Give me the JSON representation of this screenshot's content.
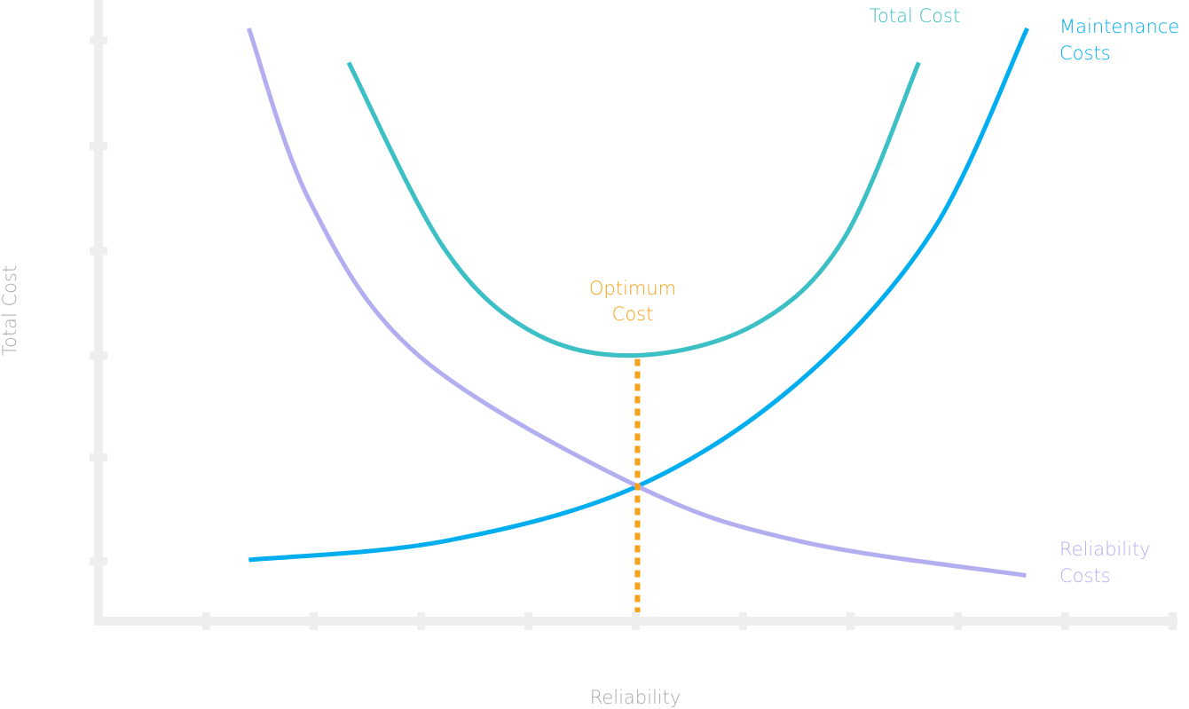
{
  "chart_data": {
    "type": "line",
    "title": "",
    "xlabel": "Reliability",
    "ylabel": "Total Cost",
    "xlim": [
      0,
      10
    ],
    "ylim": [
      0,
      6
    ],
    "x_ticks": [
      1,
      2,
      3,
      4,
      5,
      6,
      7,
      8,
      9,
      10
    ],
    "y_ticks": [
      0.58,
      1.58,
      2.56,
      3.57,
      4.58,
      5.6
    ],
    "tick_labels_shown": false,
    "grid": false,
    "legend": "none (curves labelled directly)",
    "axis_color": "#eeeeee",
    "axis_label_color": "#a8a8a8",
    "series": [
      {
        "name": "Total Cost",
        "color": "#3dbfc6",
        "label_lines": [
          "Total Cost"
        ],
        "points": [
          [
            2.33,
            5.38
          ],
          [
            3.22,
            3.59
          ],
          [
            4.05,
            2.78
          ],
          [
            5.02,
            2.56
          ],
          [
            6.12,
            2.86
          ],
          [
            6.94,
            3.68
          ],
          [
            7.64,
            5.38
          ]
        ]
      },
      {
        "name": "Maintenance Costs",
        "color": "#00aeef",
        "label_lines": [
          "Maintenance",
          "Costs"
        ],
        "points": [
          [
            1.4,
            0.59
          ],
          [
            3.22,
            0.77
          ],
          [
            5.02,
            1.3
          ],
          [
            6.53,
            2.31
          ],
          [
            7.77,
            3.76
          ],
          [
            8.65,
            5.71
          ]
        ]
      },
      {
        "name": "Reliability Costs",
        "color": "#b3aef0",
        "label_lines": [
          "Reliability",
          "Costs"
        ],
        "points": [
          [
            1.4,
            5.71
          ],
          [
            1.98,
            4.02
          ],
          [
            2.98,
            2.56
          ],
          [
            5.02,
            1.3
          ],
          [
            6.53,
            0.77
          ],
          [
            8.64,
            0.44
          ]
        ]
      }
    ],
    "annotations": [
      {
        "label_lines": [
          "Optimum",
          "Cost"
        ],
        "color": "#f7a21b",
        "style": "dotted vertical line",
        "x": 5.02,
        "y_from": 0,
        "y_to": 2.56
      }
    ]
  }
}
